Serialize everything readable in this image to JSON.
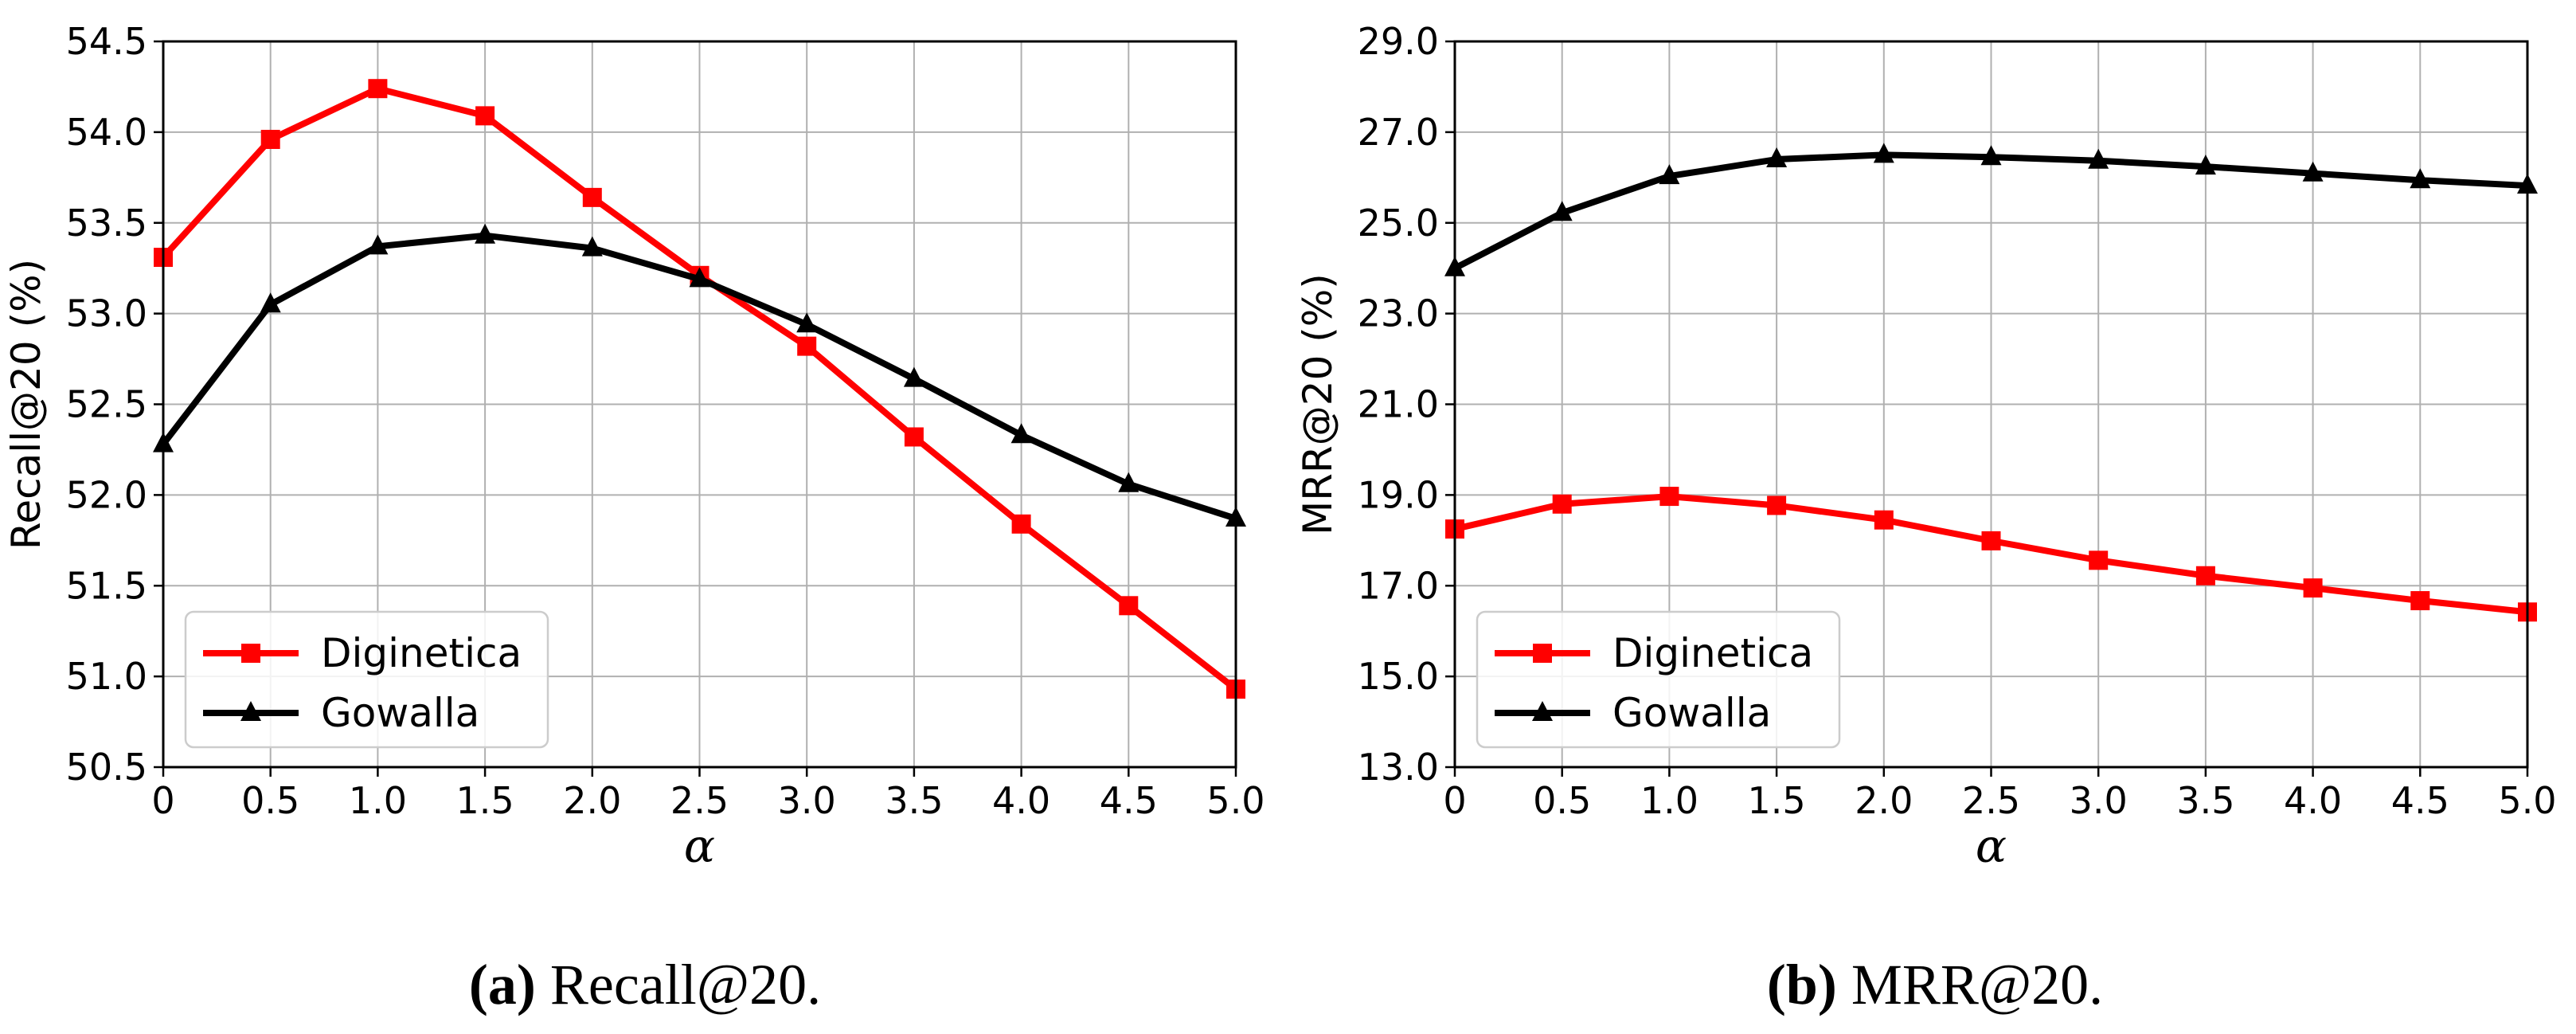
{
  "chart_data": [
    {
      "type": "line",
      "ylabel": "Recall@20 (%)",
      "xlabel": "α",
      "x": [
        0,
        0.5,
        1.0,
        1.5,
        2.0,
        2.5,
        3.0,
        3.5,
        4.0,
        4.5,
        5.0
      ],
      "x_tick_labels": [
        "0",
        "0.5",
        "1.0",
        "1.5",
        "2.0",
        "2.5",
        "3.0",
        "3.5",
        "4.0",
        "4.5",
        "5.0"
      ],
      "xlim": [
        0,
        5.0
      ],
      "ylim": [
        50.5,
        54.5
      ],
      "y_ticks": [
        50.5,
        51.0,
        51.5,
        52.0,
        52.5,
        53.0,
        53.5,
        54.0,
        54.5
      ],
      "y_tick_labels": [
        "50.5",
        "51.0",
        "51.5",
        "52.0",
        "52.5",
        "53.0",
        "53.5",
        "54.0",
        "54.5"
      ],
      "grid": true,
      "legend_position": "lower-left",
      "series": [
        {
          "name": "Diginetica",
          "color": "#ff0000",
          "marker": "square",
          "values": [
            53.31,
            53.96,
            54.24,
            54.09,
            53.64,
            53.21,
            52.82,
            52.32,
            51.84,
            51.39,
            50.93
          ]
        },
        {
          "name": "Gowalla",
          "color": "#000000",
          "marker": "triangle",
          "values": [
            52.28,
            53.05,
            53.37,
            53.43,
            53.36,
            53.19,
            52.94,
            52.64,
            52.33,
            52.06,
            51.87
          ]
        }
      ]
    },
    {
      "type": "line",
      "ylabel": "MRR@20 (%)",
      "xlabel": "α",
      "x": [
        0,
        0.5,
        1.0,
        1.5,
        2.0,
        2.5,
        3.0,
        3.5,
        4.0,
        4.5,
        5.0
      ],
      "x_tick_labels": [
        "0",
        "0.5",
        "1.0",
        "1.5",
        "2.0",
        "2.5",
        "3.0",
        "3.5",
        "4.0",
        "4.5",
        "5.0"
      ],
      "xlim": [
        0,
        5.0
      ],
      "ylim": [
        13.0,
        29.0
      ],
      "y_ticks": [
        13.0,
        15.0,
        17.0,
        19.0,
        21.0,
        23.0,
        25.0,
        27.0,
        29.0
      ],
      "y_tick_labels": [
        "13.0",
        "15.0",
        "17.0",
        "19.0",
        "21.0",
        "23.0",
        "25.0",
        "27.0",
        "29.0"
      ],
      "grid": true,
      "legend_position": "lower-left",
      "series": [
        {
          "name": "Diginetica",
          "color": "#ff0000",
          "marker": "square",
          "values": [
            18.25,
            18.8,
            18.97,
            18.77,
            18.45,
            17.99,
            17.56,
            17.22,
            16.95,
            16.67,
            16.42
          ]
        },
        {
          "name": "Gowalla",
          "color": "#000000",
          "marker": "triangle",
          "values": [
            24.0,
            25.22,
            26.03,
            26.4,
            26.5,
            26.45,
            26.37,
            26.24,
            26.09,
            25.94,
            25.82
          ]
        }
      ]
    }
  ],
  "captions": [
    {
      "tag": "(a)",
      "text": "Recall@20."
    },
    {
      "tag": "(b)",
      "text": "MRR@20."
    }
  ]
}
